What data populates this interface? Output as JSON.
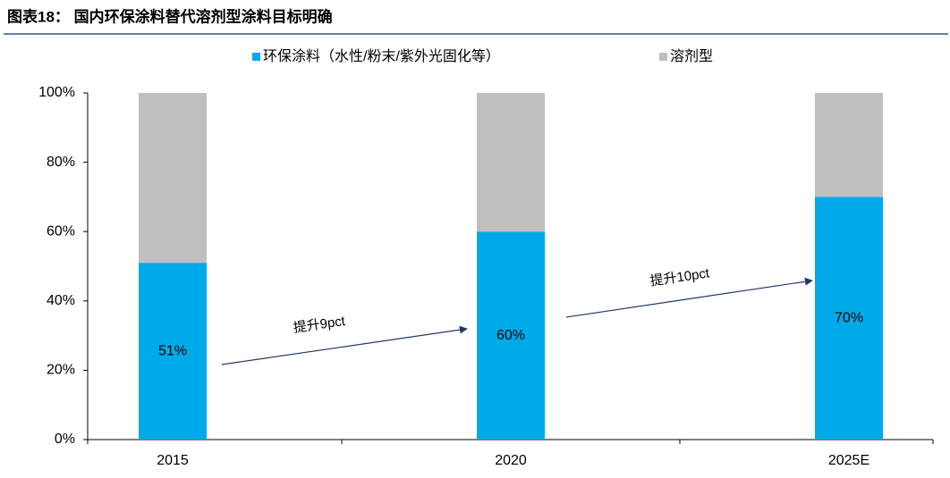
{
  "chart_data": {
    "type": "stacked_bar",
    "title": "图表18： 国内环保涂料替代溶剂型涂料目标明确",
    "categories": [
      "2015",
      "2020",
      "2025E"
    ],
    "series": [
      {
        "name": "环保涂料（水性/粉末/紫外光固化等）",
        "color": "#00a9e8",
        "values": [
          51,
          60,
          70
        ],
        "value_labels": [
          "51%",
          "60%",
          "70%"
        ]
      },
      {
        "name": "溶剂型",
        "color": "#bfbfbf",
        "values": [
          49,
          40,
          30
        ]
      }
    ],
    "ylim": [
      0,
      100
    ],
    "yticks": [
      {
        "value": 0,
        "label": "0%"
      },
      {
        "value": 20,
        "label": "20%"
      },
      {
        "value": 40,
        "label": "40%"
      },
      {
        "value": 60,
        "label": "60%"
      },
      {
        "value": 80,
        "label": "80%"
      },
      {
        "value": 100,
        "label": "100%"
      }
    ],
    "legend": "top",
    "annotations": [
      {
        "text": "提升9pct"
      },
      {
        "text": "提升10pct"
      }
    ]
  }
}
